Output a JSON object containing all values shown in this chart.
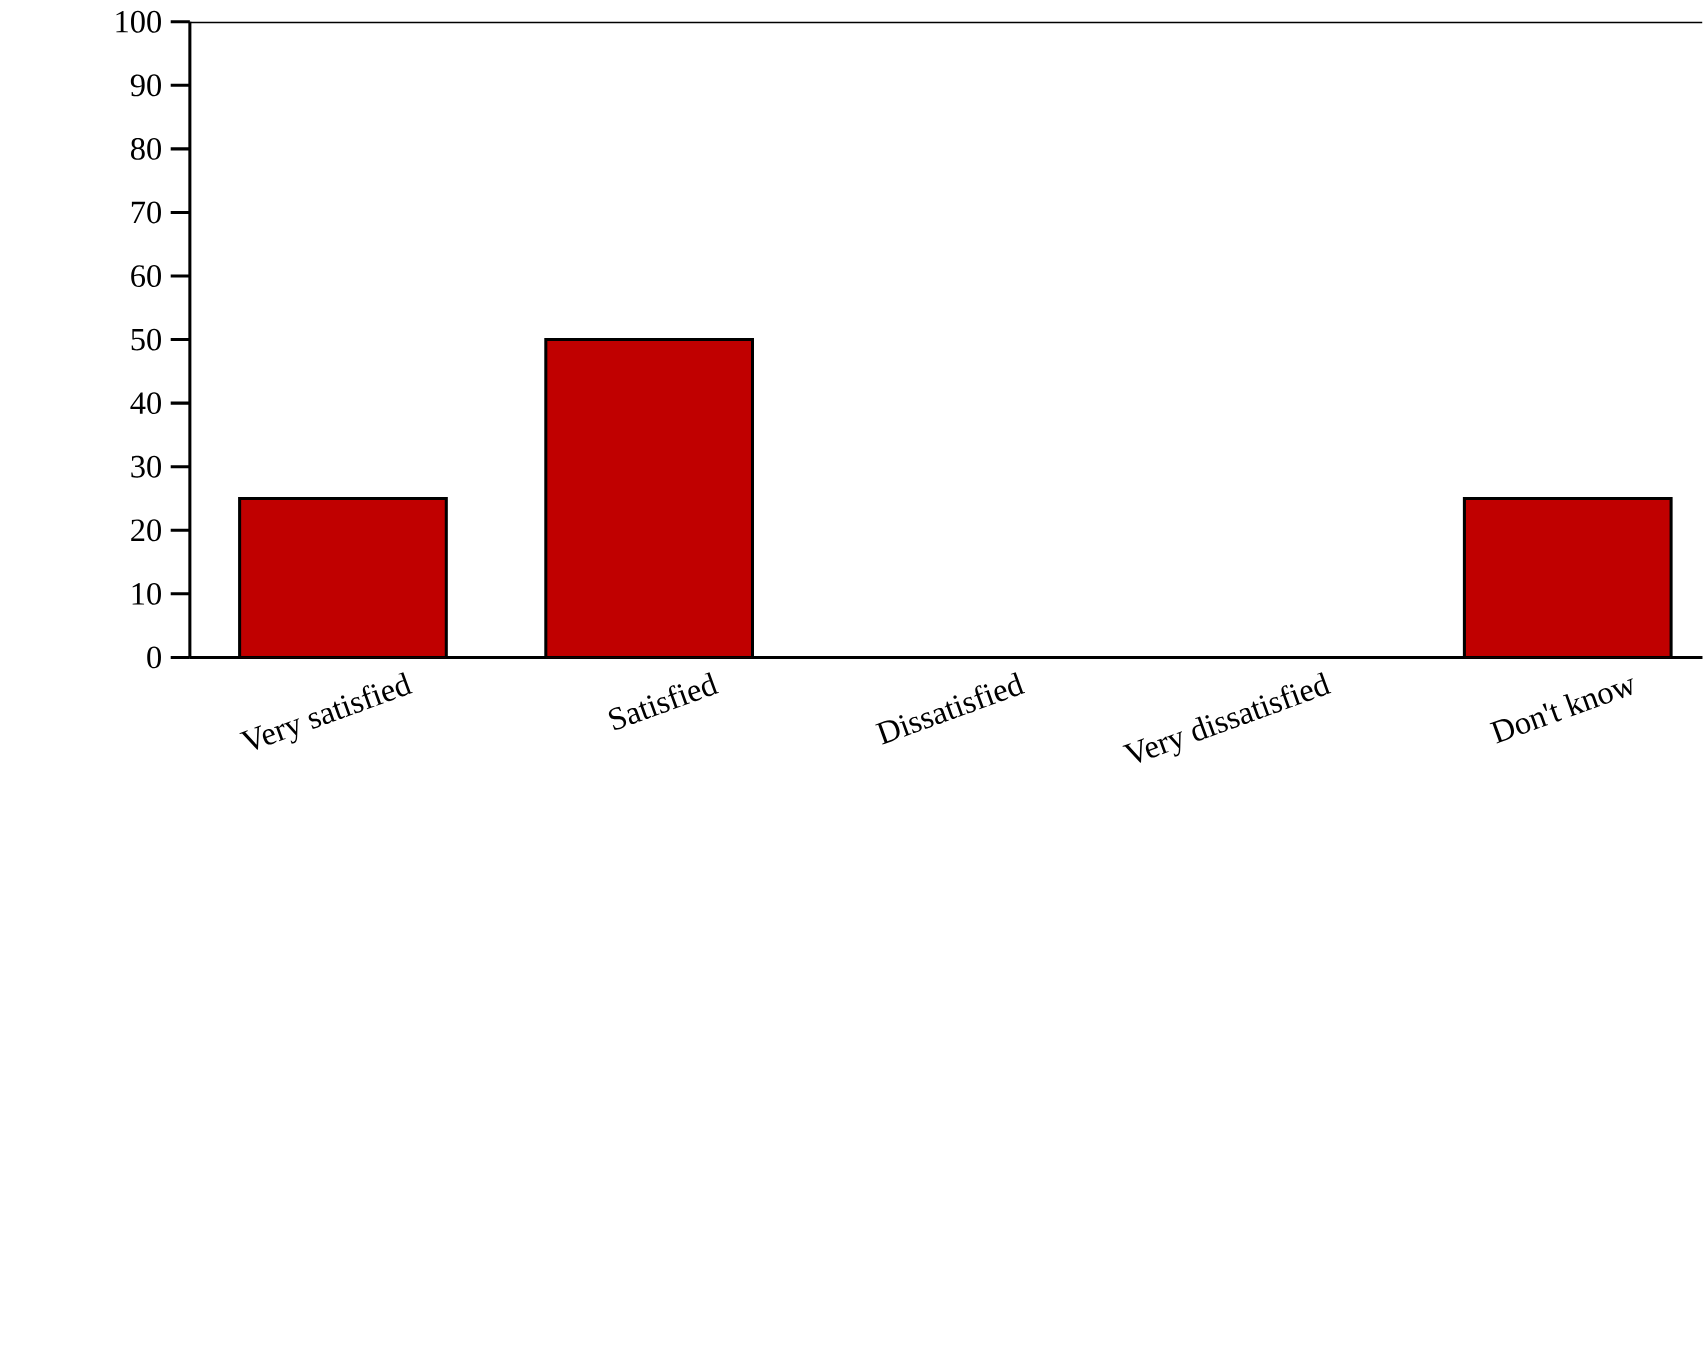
{
  "chart_data": {
    "type": "bar",
    "categories": [
      "Very satisfied",
      "Satisfied",
      "Dissatisfied",
      "Very dissatisfied",
      "Don't know"
    ],
    "values": [
      25,
      50,
      0,
      0,
      25
    ],
    "color": "#c00000",
    "ylim": [
      0,
      100
    ],
    "yticks": [
      0,
      10,
      20,
      30,
      40,
      50,
      60,
      70,
      80,
      90,
      100
    ]
  }
}
